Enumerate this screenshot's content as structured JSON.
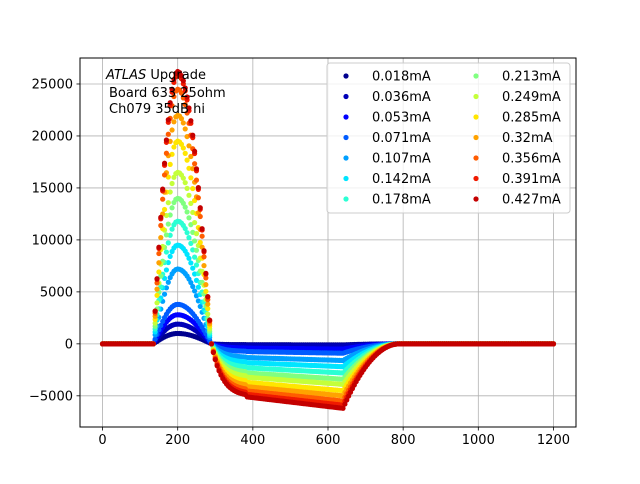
{
  "chart_data": {
    "type": "scatter",
    "title": "",
    "xlabel": "",
    "ylabel": "",
    "xlim": [
      -60,
      1260
    ],
    "ylim": [
      -8000,
      27500
    ],
    "xticks": [
      0,
      200,
      400,
      600,
      800,
      1000,
      1200
    ],
    "yticks": [
      -5000,
      0,
      5000,
      10000,
      15000,
      20000,
      25000
    ],
    "grid": true,
    "annotation": {
      "line1_italic": "ATLAS",
      "line1_rest": " Upgrade",
      "line2": "Board 633 25ohm",
      "line3": "Ch079 35dB hi"
    },
    "legend": {
      "placement": "top-right",
      "columns": 2
    },
    "x_start": 0,
    "x_end": 1200,
    "x_step": 5,
    "pulse": {
      "baseline": 0,
      "rise_start": 135,
      "peak_x": 200,
      "neg_peak_x": 640,
      "return_x": 790
    },
    "series": [
      {
        "name": "0.018mA",
        "color": "#00008f",
        "peak": 1000,
        "undershoot": -100
      },
      {
        "name": "0.036mA",
        "color": "#0000b8",
        "peak": 1900,
        "undershoot": -200
      },
      {
        "name": "0.053mA",
        "color": "#0000ff",
        "peak": 2800,
        "undershoot": -500
      },
      {
        "name": "0.071mA",
        "color": "#005cff",
        "peak": 3800,
        "undershoot": -900
      },
      {
        "name": "0.107mA",
        "color": "#00a0ff",
        "peak": 7200,
        "undershoot": -1600
      },
      {
        "name": "0.142mA",
        "color": "#00e5ff",
        "peak": 9500,
        "undershoot": -2200
      },
      {
        "name": "0.178mA",
        "color": "#2bffd4",
        "peak": 11800,
        "undershoot": -2800
      },
      {
        "name": "0.213mA",
        "color": "#80ff80",
        "peak": 14000,
        "undershoot": -3400
      },
      {
        "name": "0.249mA",
        "color": "#c4ff3a",
        "peak": 16500,
        "undershoot": -3900
      },
      {
        "name": "0.285mA",
        "color": "#ffe600",
        "peak": 19500,
        "undershoot": -4500
      },
      {
        "name": "0.32mA",
        "color": "#ffa200",
        "peak": 22000,
        "undershoot": -5000
      },
      {
        "name": "0.356mA",
        "color": "#ff5c00",
        "peak": 24500,
        "undershoot": -5500
      },
      {
        "name": "0.391mA",
        "color": "#f01a00",
        "peak": 25900,
        "undershoot": -5900
      },
      {
        "name": "0.427mA",
        "color": "#c40000",
        "peak": 26200,
        "undershoot": -6200
      }
    ]
  }
}
